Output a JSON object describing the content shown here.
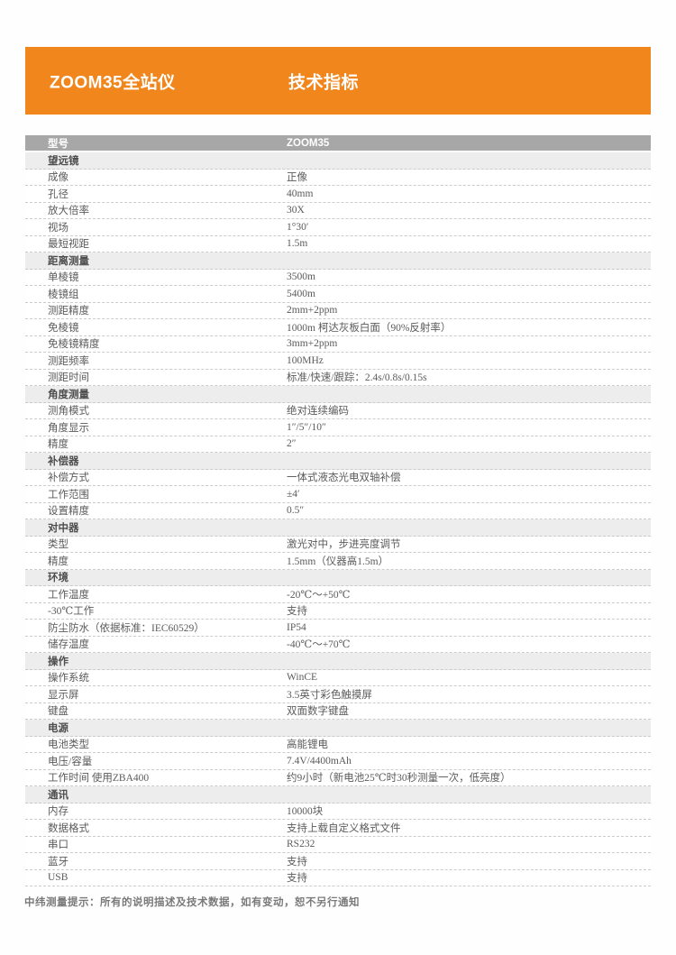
{
  "colors": {
    "banner_bg": "#F0861C",
    "model_row_bg": "#A7A7A7",
    "section_row_bg": "#EDEDED"
  },
  "banner": {
    "product_title": "ZOOM35全站仪",
    "spec_title": "技术指标"
  },
  "table": {
    "model": {
      "label": "型号",
      "value": "ZOOM35"
    },
    "sections": [
      {
        "title": "望远镜",
        "rows": [
          {
            "label": "成像",
            "value": "正像"
          },
          {
            "label": "孔径",
            "value": "40mm"
          },
          {
            "label": "放大倍率",
            "value": "30X"
          },
          {
            "label": "视场",
            "value": "1°30′"
          },
          {
            "label": "最短视距",
            "value": "1.5m"
          }
        ]
      },
      {
        "title": "距离测量",
        "rows": [
          {
            "label": "单棱镜",
            "value": "3500m"
          },
          {
            "label": "棱镜组",
            "value": "5400m"
          },
          {
            "label": "测距精度",
            "value": "2mm+2ppm"
          },
          {
            "label": "免棱镜",
            "value": "1000m 柯达灰板白面（90%反射率）"
          },
          {
            "label": "免棱镜精度",
            "value": "3mm+2ppm"
          },
          {
            "label": "测距频率",
            "value": "100MHz"
          },
          {
            "label": "测距时间",
            "value": "标准/快速/跟踪：2.4s/0.8s/0.15s"
          }
        ]
      },
      {
        "title": "角度测量",
        "rows": [
          {
            "label": "测角模式",
            "value": "绝对连续编码"
          },
          {
            "label": "角度显示",
            "value": "1″/5″/10″"
          },
          {
            "label": "精度",
            "value": "2″"
          }
        ]
      },
      {
        "title": "补偿器",
        "rows": [
          {
            "label": "补偿方式",
            "value": "一体式液态光电双轴补偿"
          },
          {
            "label": "工作范围",
            "value": "±4′"
          },
          {
            "label": "设置精度",
            "value": "0.5″"
          }
        ]
      },
      {
        "title": "对中器",
        "rows": [
          {
            "label": "类型",
            "value": "激光对中，步进亮度调节"
          },
          {
            "label": "精度",
            "value": "1.5mm（仪器高1.5m）"
          }
        ]
      },
      {
        "title": "环境",
        "rows": [
          {
            "label": "工作温度",
            "value": "-20℃～+50℃"
          },
          {
            "label": "-30℃工作",
            "value": "支持"
          },
          {
            "label": "防尘防水（依据标准：IEC60529）",
            "value": "IP54"
          },
          {
            "label": "储存温度",
            "value": "-40℃～+70℃"
          }
        ]
      },
      {
        "title": "操作",
        "rows": [
          {
            "label": "操作系统",
            "value": "WinCE"
          },
          {
            "label": "显示屏",
            "value": "3.5英寸彩色触摸屏"
          },
          {
            "label": "键盘",
            "value": "双面数字键盘"
          }
        ]
      },
      {
        "title": "电源",
        "rows": [
          {
            "label": "电池类型",
            "value": "高能锂电"
          },
          {
            "label": "电压/容量",
            "value": "7.4V/4400mAh"
          },
          {
            "label": "工作时间 使用ZBA400",
            "value": "约9小时（新电池25℃时30秒测量一次，低亮度）"
          }
        ]
      },
      {
        "title": "通讯",
        "rows": [
          {
            "label": "内存",
            "value": "10000块"
          },
          {
            "label": "数据格式",
            "value": "支持上载自定义格式文件"
          },
          {
            "label": "串口",
            "value": "RS232"
          },
          {
            "label": "蓝牙",
            "value": "支持"
          },
          {
            "label": "USB",
            "value": "支持"
          }
        ]
      }
    ]
  },
  "footer": {
    "note": "中纬测量提示：所有的说明描述及技术数据，如有变动，恕不另行通知"
  }
}
